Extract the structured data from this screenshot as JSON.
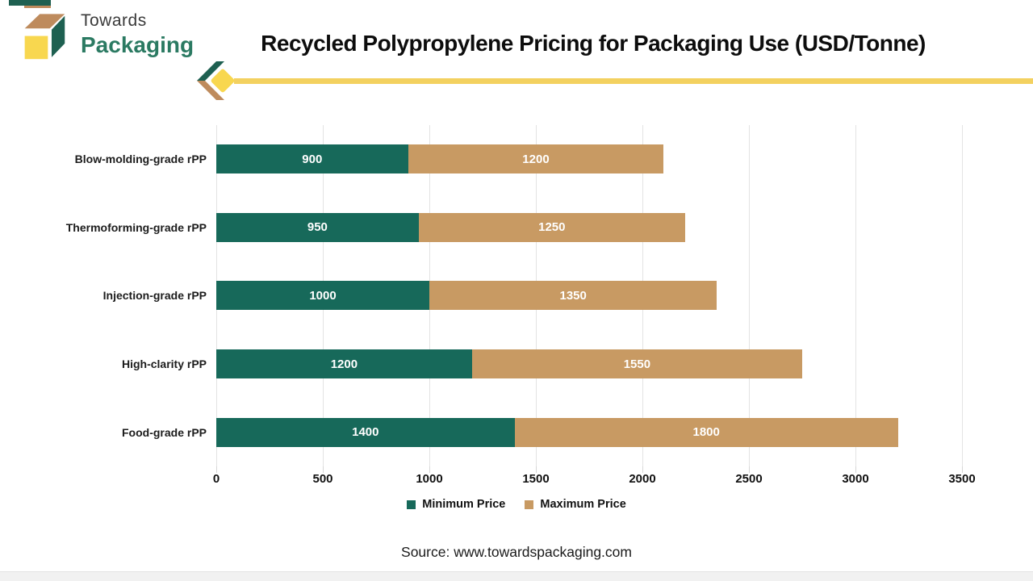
{
  "logo": {
    "line1": "Towards",
    "line2": "Packaging"
  },
  "title": "Recycled Polypropylene Pricing for Packaging Use (USD/Tonne)",
  "source": "Source: www.towardspackaging.com",
  "colors": {
    "min_bar": "#17695A",
    "max_bar": "#C89A63",
    "grid": "#E3E3E3",
    "rule_yellow": "#F3D160",
    "logo_yellow": "#F8D74F",
    "logo_tan": "#BE8B5D",
    "logo_green": "#1E6051",
    "logo_text_green": "#2B7A62"
  },
  "chart_data": {
    "type": "bar",
    "orientation": "horizontal",
    "stacked": true,
    "title": "Recycled Polypropylene Pricing for Packaging Use (USD/Tonne)",
    "categories": [
      "Blow-molding-grade rPP",
      "Thermoforming-grade rPP",
      "Injection-grade rPP",
      "High-clarity rPP",
      "Food-grade rPP"
    ],
    "series": [
      {
        "name": "Minimum Price",
        "color": "#17695A",
        "values": [
          900,
          950,
          1000,
          1200,
          1400
        ]
      },
      {
        "name": "Maximum Price",
        "color": "#C89A63",
        "values": [
          1200,
          1250,
          1350,
          1550,
          1800
        ]
      }
    ],
    "xlabel": "",
    "ylabel": "",
    "xlim": [
      0,
      3500
    ],
    "xticks": [
      0,
      500,
      1000,
      1500,
      2000,
      2500,
      3000,
      3500
    ],
    "grid": true,
    "legend_position": "bottom"
  },
  "legend": [
    {
      "label": "Minimum Price",
      "color": "#17695A"
    },
    {
      "label": "Maximum Price",
      "color": "#C89A63"
    }
  ]
}
